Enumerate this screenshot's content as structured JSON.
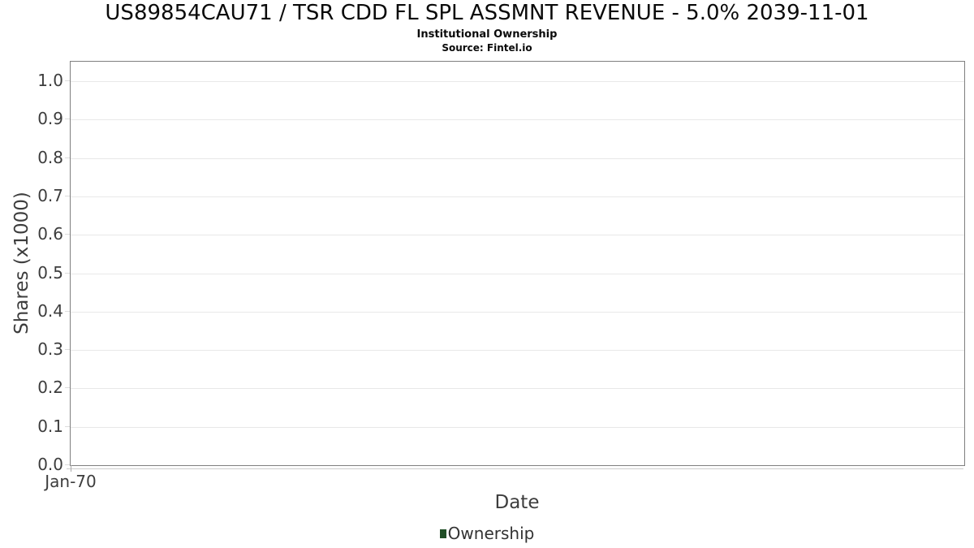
{
  "header": {
    "title": "US89854CAU71 / TSR CDD FL SPL ASSMNT REVENUE - 5.0% 2039-11-01",
    "subtitle": "Institutional Ownership",
    "source": "Source: Fintel.io"
  },
  "chart_data": {
    "type": "line",
    "title": "US89854CAU71 / TSR CDD FL SPL ASSMNT REVENUE - 5.0% 2039-11-01",
    "subtitle": "Institutional Ownership",
    "source": "Source: Fintel.io",
    "xlabel": "Date",
    "ylabel": "Shares (x1000)",
    "x_tick_labels": [
      "Jan-70"
    ],
    "y_tick_labels": [
      "0.0",
      "0.1",
      "0.2",
      "0.3",
      "0.4",
      "0.5",
      "0.6",
      "0.7",
      "0.8",
      "0.9",
      "1.0"
    ],
    "ylim": [
      0.0,
      1.05
    ],
    "grid": true,
    "legend_position": "bottom-center",
    "legend": [
      {
        "label": "Ownership",
        "color": "#1f4d25"
      }
    ],
    "series": [
      {
        "name": "Ownership",
        "x": [],
        "values": []
      }
    ]
  },
  "colors": {
    "plot_border": "#7f7f7f",
    "gridline": "#e8e8e8",
    "axis_line": "#cccccc",
    "tick_text": "#3d3d3d",
    "title_text": "#0a0a0a",
    "legend_text": "#333333",
    "legend_marker": "#1f4d25"
  }
}
